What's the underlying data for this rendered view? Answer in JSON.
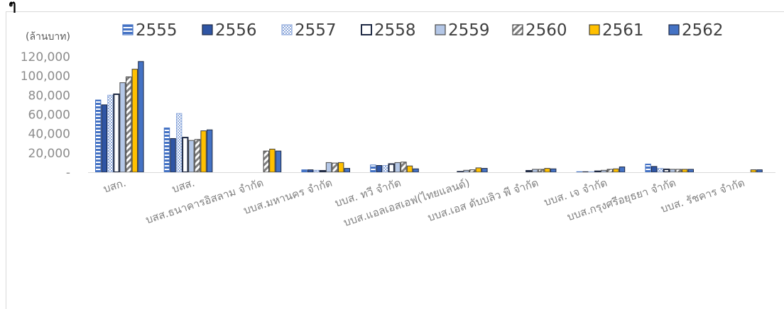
{
  "chart_data": {
    "type": "bar",
    "corner_text": "ๆ",
    "unit_label": "(ล้านบาท)",
    "ylim": [
      0,
      120000
    ],
    "yticks": [
      {
        "value": 0,
        "label": "-"
      },
      {
        "value": 20000,
        "label": "20,000"
      },
      {
        "value": 40000,
        "label": "40,000"
      },
      {
        "value": 60000,
        "label": "60,000"
      },
      {
        "value": 80000,
        "label": "80,000"
      },
      {
        "value": 100000,
        "label": "100,000"
      },
      {
        "value": 120000,
        "label": "120,000"
      }
    ],
    "grid": false,
    "legend_position": "top",
    "categories": [
      "บสก.",
      "บสส.",
      "บสส.ธนาคารอิสลาม จำกัด",
      "บบส.มหานคร จำกัด",
      "บบส. ทวี จำกัด",
      "บบส.แอลเอสเอฟ(ไทยแลนด์)",
      "บบส.เอส ดับบลิว พี จำกัด",
      "บบส. เจ จำกัด",
      "บบส.กรุงศรีอยุธยา จำกัด",
      "บบส. รัชคาร จำกัด"
    ],
    "series": [
      {
        "name": "2555",
        "color": "#4472c4",
        "pattern": "hstripe-blue",
        "values": [
          75000,
          46000,
          0,
          2500,
          7500,
          0,
          0,
          500,
          8500,
          0
        ]
      },
      {
        "name": "2556",
        "color": "#2f55a4",
        "pattern": "solid-darkblue",
        "values": [
          70000,
          35000,
          0,
          2500,
          7000,
          0,
          0,
          500,
          6000,
          0
        ]
      },
      {
        "name": "2557",
        "color": "#8faadc",
        "pattern": "dots-lightblue",
        "values": [
          80000,
          61000,
          0,
          2000,
          7000,
          0,
          0,
          500,
          4000,
          0
        ]
      },
      {
        "name": "2558",
        "color": "#1f2a44",
        "pattern": "white-dark-border",
        "values": [
          81000,
          36000,
          0,
          1500,
          8500,
          500,
          1500,
          1000,
          3000,
          0
        ]
      },
      {
        "name": "2559",
        "color": "#b4c7e7",
        "pattern": "lightblue-solid",
        "values": [
          93000,
          33000,
          0,
          10000,
          10000,
          2000,
          3000,
          2000,
          3000,
          0
        ]
      },
      {
        "name": "2560",
        "color": "#7f7f7f",
        "pattern": "diag-gray",
        "values": [
          99000,
          34000,
          22000,
          9500,
          10500,
          2500,
          3000,
          3000,
          3000,
          0
        ]
      },
      {
        "name": "2561",
        "color": "#ffc000",
        "pattern": "solid-gold",
        "values": [
          107000,
          43000,
          24000,
          10000,
          6500,
          4500,
          4000,
          3500,
          3000,
          2500
        ]
      },
      {
        "name": "2562",
        "color": "#4472c4",
        "pattern": "solid-blue",
        "values": [
          115000,
          44000,
          22000,
          4000,
          3500,
          4000,
          3500,
          5500,
          3000,
          2500
        ]
      }
    ]
  }
}
